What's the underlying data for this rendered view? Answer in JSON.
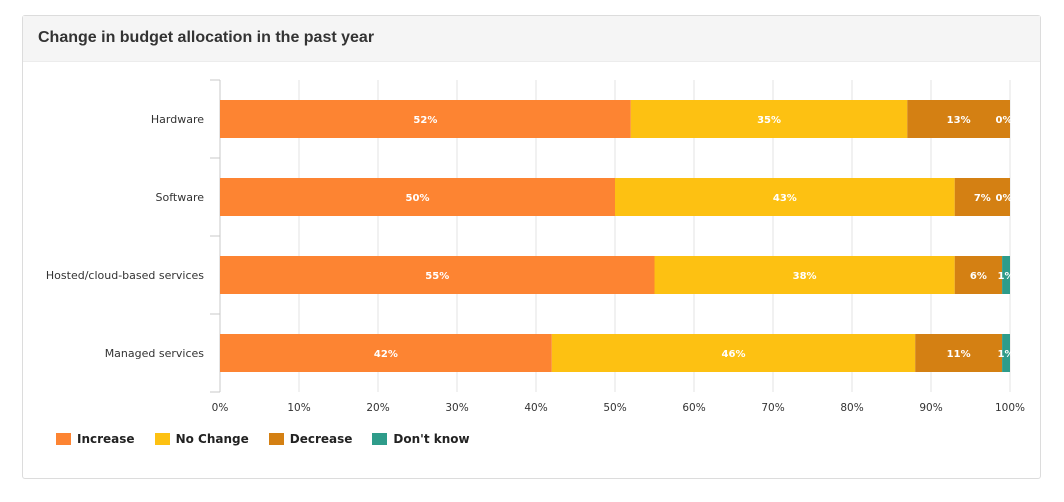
{
  "card": {
    "title": "Change in budget allocation in the past year"
  },
  "chart_data": {
    "type": "bar",
    "orientation": "horizontal",
    "stacked": true,
    "title": "Change in budget allocation in the past year",
    "categories": [
      "Hardware",
      "Software",
      "Hosted/cloud-based services",
      "Managed services"
    ],
    "series": [
      {
        "name": "Increase",
        "color": "#fd8432",
        "values": [
          52,
          50,
          55,
          42
        ],
        "labels": [
          "52%",
          "50%",
          "55%",
          "42%"
        ]
      },
      {
        "name": "No Change",
        "color": "#fdc112",
        "values": [
          35,
          43,
          38,
          46
        ],
        "labels": [
          "35%",
          "43%",
          "38%",
          "46%"
        ]
      },
      {
        "name": "Decrease",
        "color": "#d48013",
        "values": [
          13,
          7,
          6,
          11
        ],
        "labels": [
          "13%",
          "7%",
          "6%",
          "11%"
        ]
      },
      {
        "name": "Don't know",
        "color": "#2e9c8a",
        "values": [
          0,
          0,
          1,
          1
        ],
        "labels": [
          "0%",
          "0%",
          "1%",
          "1%"
        ]
      }
    ],
    "xlim": [
      0,
      100
    ],
    "xticks": [
      "0%",
      "10%",
      "20%",
      "30%",
      "40%",
      "50%",
      "60%",
      "70%",
      "80%",
      "90%",
      "100%"
    ],
    "grid": true,
    "legend_position": "bottom-left"
  }
}
